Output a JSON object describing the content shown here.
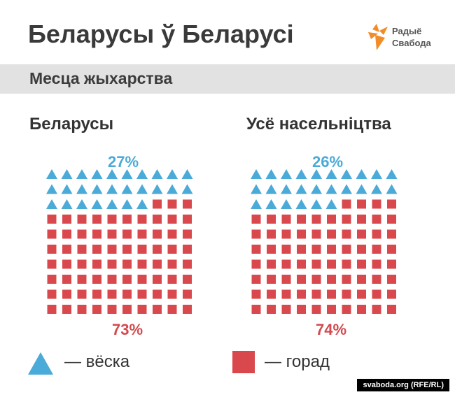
{
  "header": {
    "title": "Беларусы ў Беларусі"
  },
  "logo": {
    "line1": "Радыё",
    "line2": "Свабода"
  },
  "band": {
    "subtitle": "Месца жыхарства"
  },
  "colors": {
    "rural": "#4aaad8",
    "urban": "#d9484d"
  },
  "chart_data": [
    {
      "type": "pictogram",
      "title": "Беларусы",
      "series": [
        {
          "name": "вёска",
          "percent": 27,
          "label": "27%"
        },
        {
          "name": "горад",
          "percent": 73,
          "label": "73%"
        }
      ]
    },
    {
      "type": "pictogram",
      "title": "Усё насельніцтва",
      "series": [
        {
          "name": "вёска",
          "percent": 26,
          "label": "26%"
        },
        {
          "name": "горад",
          "percent": 74,
          "label": "74%"
        }
      ]
    }
  ],
  "legend": {
    "rural_label": "— вёска",
    "urban_label": "— горад"
  },
  "footer": {
    "source": "svaboda.org (RFE/RL)"
  }
}
